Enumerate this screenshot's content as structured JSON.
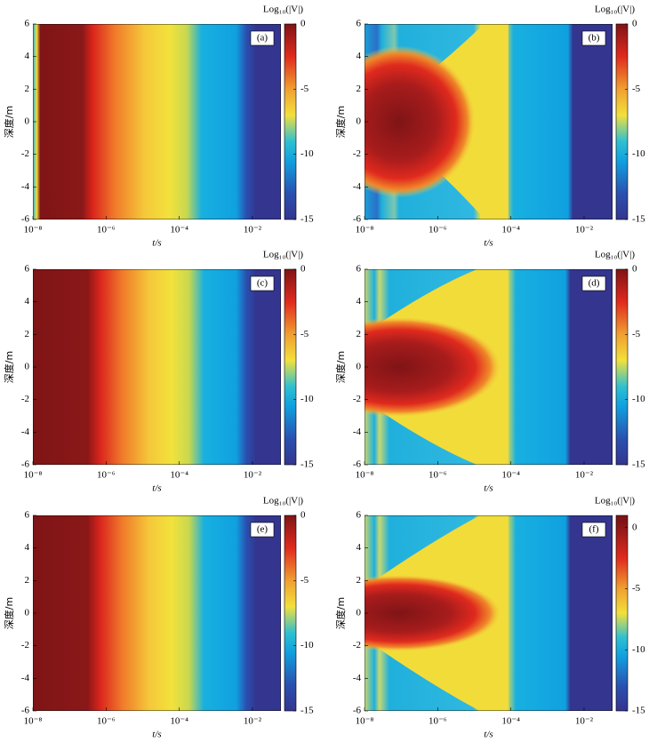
{
  "chart_data": [
    {
      "type": "heatmap",
      "panel_label": "(a)",
      "colorbar_label": "Log₁₀(|V|)",
      "ylabel": "深度/m",
      "xlabel": "t/s",
      "log_x": true,
      "xlim": [
        1e-08,
        0.06
      ],
      "ylim": [
        -6,
        6
      ],
      "clim": [
        -15,
        0
      ],
      "xticks": [
        {
          "value": 1e-08,
          "label": "10⁻⁸"
        },
        {
          "value": 1e-06,
          "label": "10⁻⁶"
        },
        {
          "value": 0.0001,
          "label": "10⁻⁴"
        },
        {
          "value": 0.01,
          "label": "10⁻²"
        }
      ],
      "yticks": [
        -6,
        -4,
        -2,
        0,
        2,
        4,
        6
      ],
      "cticks": [
        0,
        -5,
        -10,
        -15
      ]
    },
    {
      "type": "heatmap",
      "panel_label": "(b)",
      "colorbar_label": "Log₁₀(|V|)",
      "ylabel": "深度/m",
      "xlabel": "t/s",
      "log_x": true,
      "xlim": [
        1e-08,
        0.06
      ],
      "ylim": [
        -6,
        6
      ],
      "clim": [
        -15,
        0
      ],
      "xticks": [
        {
          "value": 1e-08,
          "label": "10⁻⁸"
        },
        {
          "value": 1e-06,
          "label": "10⁻⁶"
        },
        {
          "value": 0.0001,
          "label": "10⁻⁴"
        },
        {
          "value": 0.01,
          "label": "10⁻²"
        }
      ],
      "yticks": [
        -6,
        -4,
        -2,
        0,
        2,
        4,
        6
      ],
      "cticks": [
        0,
        -5,
        -10,
        -15
      ]
    },
    {
      "type": "heatmap",
      "panel_label": "(c)",
      "colorbar_label": "Log₁₀(|V|)",
      "ylabel": "深度/m",
      "xlabel": "t/s",
      "log_x": true,
      "xlim": [
        1e-08,
        0.06
      ],
      "ylim": [
        -6,
        6
      ],
      "clim": [
        -15,
        0
      ],
      "xticks": [
        {
          "value": 1e-08,
          "label": "10⁻⁸"
        },
        {
          "value": 1e-06,
          "label": "10⁻⁶"
        },
        {
          "value": 0.0001,
          "label": "10⁻⁴"
        },
        {
          "value": 0.01,
          "label": "10⁻²"
        }
      ],
      "yticks": [
        -6,
        -4,
        -2,
        0,
        2,
        4,
        6
      ],
      "cticks": [
        0,
        -5,
        -10,
        -15
      ]
    },
    {
      "type": "heatmap",
      "panel_label": "(d)",
      "colorbar_label": "Log₁₀(|V|)",
      "ylabel": "深度/m",
      "xlabel": "t/s",
      "log_x": true,
      "xlim": [
        1e-08,
        0.06
      ],
      "ylim": [
        -6,
        6
      ],
      "clim": [
        -15,
        0
      ],
      "xticks": [
        {
          "value": 1e-08,
          "label": "10⁻⁸"
        },
        {
          "value": 1e-06,
          "label": "10⁻⁶"
        },
        {
          "value": 0.0001,
          "label": "10⁻⁴"
        },
        {
          "value": 0.01,
          "label": "10⁻²"
        }
      ],
      "yticks": [
        -6,
        -4,
        -2,
        0,
        2,
        4,
        6
      ],
      "cticks": [
        0,
        -5,
        -10,
        -15
      ]
    },
    {
      "type": "heatmap",
      "panel_label": "(e)",
      "colorbar_label": "Log₁₀(|V|)",
      "ylabel": "深度/m",
      "xlabel": "t/s",
      "log_x": true,
      "xlim": [
        1e-08,
        0.06
      ],
      "ylim": [
        -6,
        6
      ],
      "clim": [
        -15,
        0
      ],
      "xticks": [
        {
          "value": 1e-08,
          "label": "10⁻⁸"
        },
        {
          "value": 1e-06,
          "label": "10⁻⁶"
        },
        {
          "value": 0.0001,
          "label": "10⁻⁴"
        },
        {
          "value": 0.01,
          "label": "10⁻²"
        }
      ],
      "yticks": [
        -6,
        -4,
        -2,
        0,
        2,
        4,
        6
      ],
      "cticks": [
        0,
        -5,
        -10,
        -15
      ]
    },
    {
      "type": "heatmap",
      "panel_label": "(f)",
      "colorbar_label": "Log₁₀(|V|)",
      "ylabel": "深度/m",
      "xlabel": "t/s",
      "log_x": true,
      "xlim": [
        1e-08,
        0.06
      ],
      "ylim": [
        -6,
        6
      ],
      "clim": [
        -15,
        1
      ],
      "xticks": [
        {
          "value": 1e-08,
          "label": "10⁻⁸"
        },
        {
          "value": 1e-06,
          "label": "10⁻⁶"
        },
        {
          "value": 0.0001,
          "label": "10⁻⁴"
        },
        {
          "value": 0.01,
          "label": "10⁻²"
        }
      ],
      "yticks": [
        -6,
        -4,
        -2,
        0,
        2,
        4,
        6
      ],
      "cticks": [
        0,
        -5,
        -10,
        -15
      ]
    }
  ]
}
